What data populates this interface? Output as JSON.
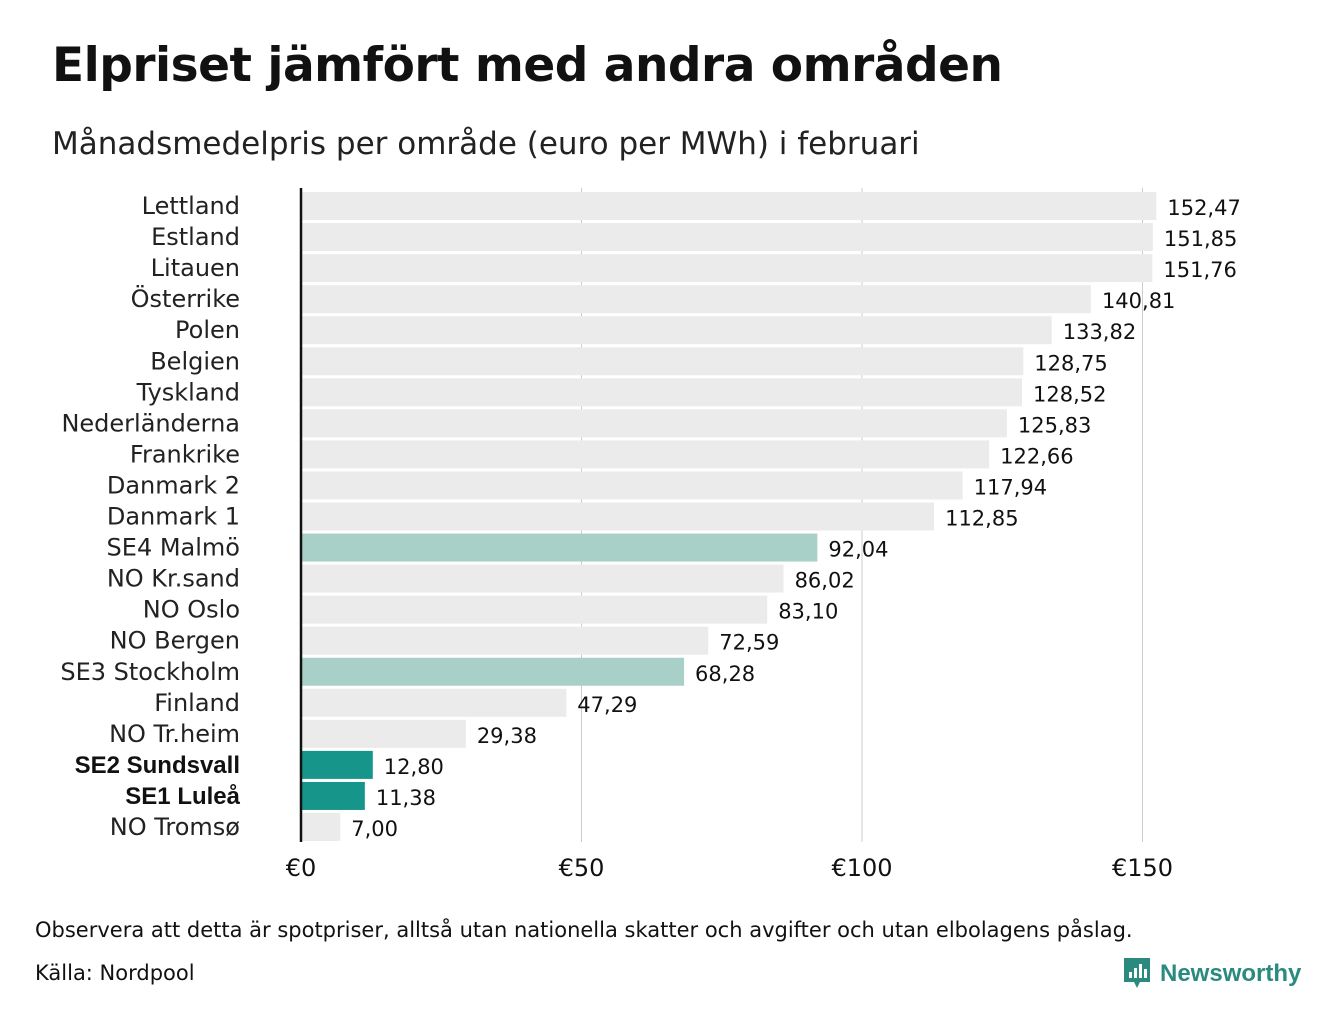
{
  "chart_data": {
    "type": "bar",
    "orientation": "horizontal",
    "title": "Elpriset jämfört med andra områden",
    "subtitle": "Månadsmedelpris per område (euro per MWh) i februari",
    "categories": [
      "Lettland",
      "Estland",
      "Litauen",
      "Österrike",
      "Polen",
      "Belgien",
      "Tyskland",
      "Nederländerna",
      "Frankrike",
      "Danmark 2",
      "Danmark 1",
      "SE4 Malmö",
      "NO Kr.sand",
      "NO Oslo",
      "NO Bergen",
      "SE3 Stockholm",
      "Finland",
      "NO Tr.heim",
      "SE2 Sundsvall",
      "SE1 Luleå",
      "NO Tromsø"
    ],
    "values": [
      152.47,
      151.85,
      151.76,
      140.81,
      133.82,
      128.75,
      128.52,
      125.83,
      122.66,
      117.94,
      112.85,
      92.04,
      86.02,
      83.1,
      72.59,
      68.28,
      47.29,
      29.38,
      12.8,
      11.38,
      7.0
    ],
    "value_labels": [
      "152,47",
      "151,85",
      "151,76",
      "140,81",
      "133,82",
      "128,75",
      "128,52",
      "125,83",
      "122,66",
      "117,94",
      "112,85",
      "92,04",
      "86,02",
      "83,10",
      "72,59",
      "68,28",
      "47,29",
      "29,38",
      "12,80",
      "11,38",
      "7,00"
    ],
    "highlight": {
      "SE4 Malmö": "light",
      "SE3 Stockholm": "light",
      "SE2 Sundsvall": "strong",
      "SE1 Luleå": "strong"
    },
    "bold_categories": [
      "SE2 Sundsvall",
      "SE1 Luleå"
    ],
    "xticks": [
      0,
      50,
      100,
      150
    ],
    "xtick_labels": [
      "€0",
      "€50",
      "€100",
      "€150"
    ],
    "xlim": [
      0,
      170
    ],
    "grid": "vertical",
    "xlabel": "",
    "ylabel": ""
  },
  "colors": {
    "bar_default": "#ebebeb",
    "bar_light": "#a8d0c9",
    "bar_strong": "#16968a",
    "grid": "#cccccc",
    "axis": "#111111",
    "brand": "#2a8a80"
  },
  "footer": {
    "note": "Observera att detta är spotpriser, alltså utan nationella skatter och avgifter och utan elbolagens påslag.",
    "source": "Källa: Nordpool"
  },
  "brand": {
    "name": "Newsworthy",
    "icon": "bar-chart-speech-bubble-icon"
  }
}
